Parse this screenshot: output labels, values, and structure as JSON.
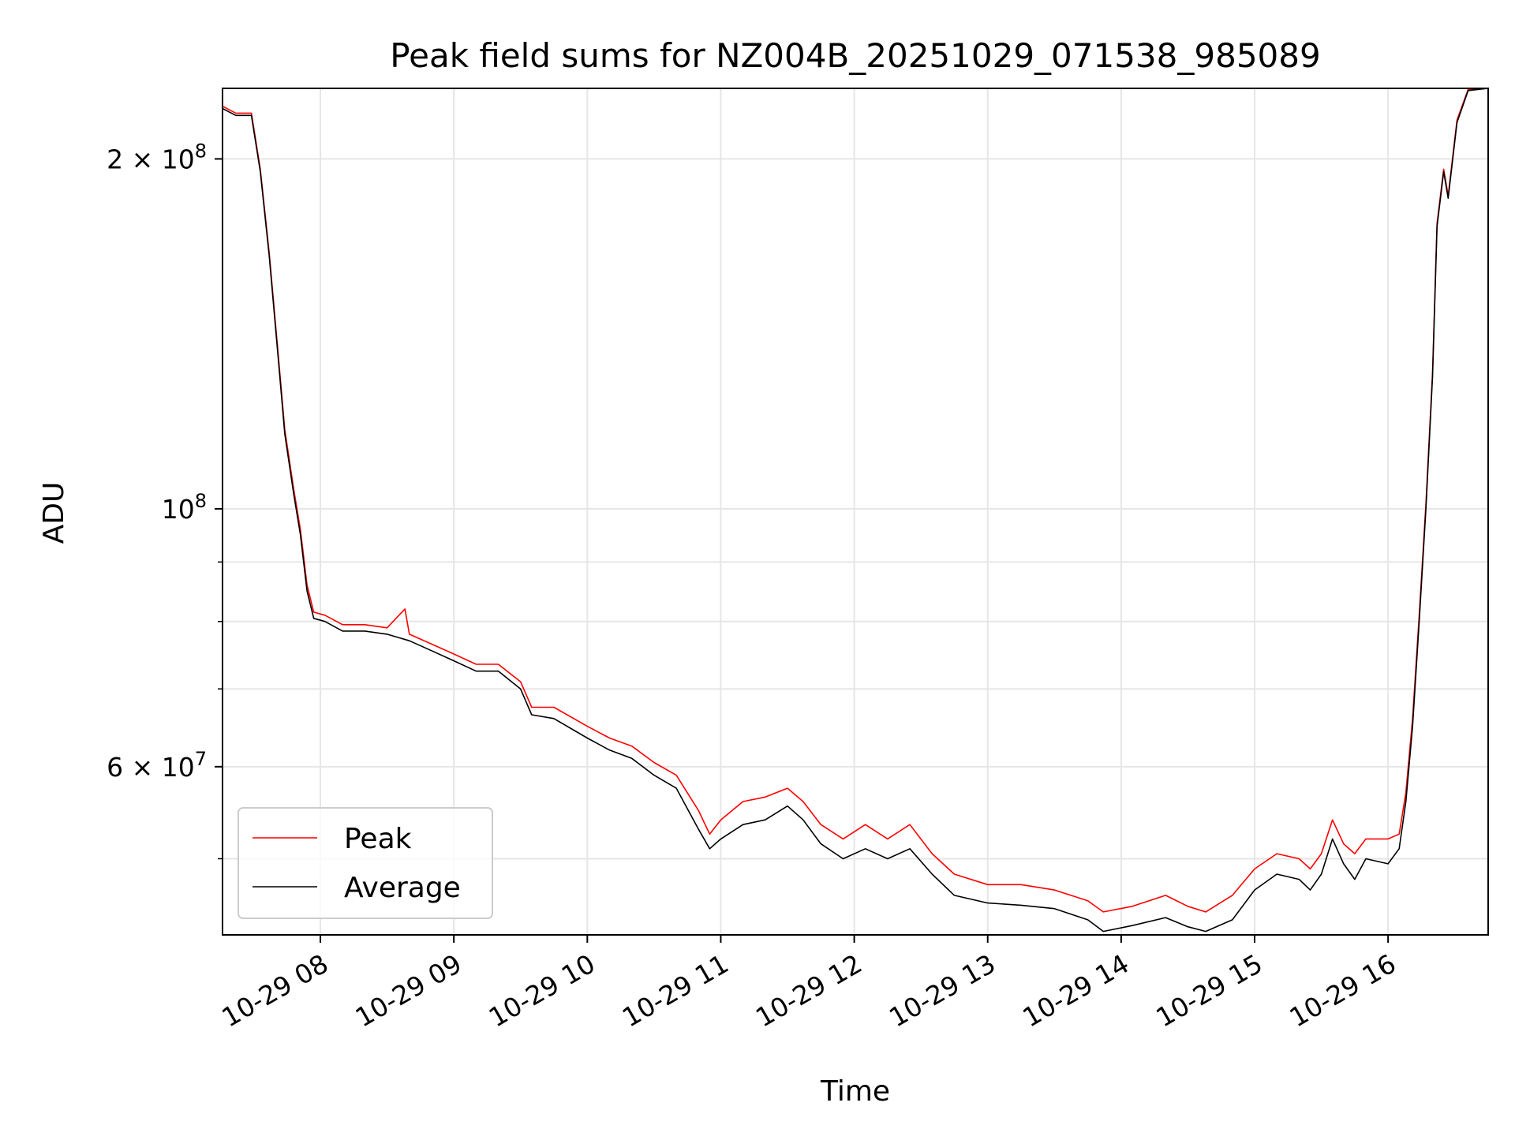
{
  "chart_data": {
    "type": "line",
    "title": "Peak field sums for NZ004B_20251029_071538_985089",
    "xlabel": "Time",
    "ylabel": "ADU",
    "y_scale": "log",
    "xlim": [
      "2025-10-29 07:16",
      "2025-10-29 16:45"
    ],
    "ylim": [
      43000000,
      230000000
    ],
    "grid": true,
    "legend_position": "lower-left",
    "x_ticks": [
      {
        "value": "2025-10-29 08:00",
        "label": "10-29 08"
      },
      {
        "value": "2025-10-29 09:00",
        "label": "10-29 09"
      },
      {
        "value": "2025-10-29 10:00",
        "label": "10-29 10"
      },
      {
        "value": "2025-10-29 11:00",
        "label": "10-29 11"
      },
      {
        "value": "2025-10-29 12:00",
        "label": "10-29 12"
      },
      {
        "value": "2025-10-29 13:00",
        "label": "10-29 13"
      },
      {
        "value": "2025-10-29 14:00",
        "label": "10-29 14"
      },
      {
        "value": "2025-10-29 15:00",
        "label": "10-29 15"
      },
      {
        "value": "2025-10-29 16:00",
        "label": "10-29 16"
      }
    ],
    "y_ticks": [
      {
        "value": 60000000,
        "mantissa": "6",
        "exponent": "7"
      },
      {
        "value": 100000000,
        "mantissa": "",
        "exponent": "8"
      },
      {
        "value": 200000000,
        "mantissa": "2",
        "exponent": "8"
      }
    ],
    "y_minor_ticks": [
      50000000,
      70000000,
      80000000,
      90000000,
      300000000
    ],
    "series": [
      {
        "name": "Average",
        "color": "#000000",
        "points": [
          [
            "2025-10-29 07:16",
            221000000
          ],
          [
            "2025-10-29 07:22",
            218000000
          ],
          [
            "2025-10-29 07:29",
            218000000
          ],
          [
            "2025-10-29 07:33",
            195000000
          ],
          [
            "2025-10-29 07:37",
            165000000
          ],
          [
            "2025-10-29 07:41",
            135000000
          ],
          [
            "2025-10-29 07:44",
            116000000
          ],
          [
            "2025-10-29 07:48",
            103000000
          ],
          [
            "2025-10-29 07:51",
            95000000
          ],
          [
            "2025-10-29 07:54",
            85000000
          ],
          [
            "2025-10-29 07:57",
            80500000
          ],
          [
            "2025-10-29 08:02",
            80000000
          ],
          [
            "2025-10-29 08:10",
            78500000
          ],
          [
            "2025-10-29 08:20",
            78500000
          ],
          [
            "2025-10-29 08:30",
            78000000
          ],
          [
            "2025-10-29 08:40",
            77000000
          ],
          [
            "2025-10-29 08:50",
            75500000
          ],
          [
            "2025-10-29 09:00",
            74000000
          ],
          [
            "2025-10-29 09:10",
            72500000
          ],
          [
            "2025-10-29 09:20",
            72500000
          ],
          [
            "2025-10-29 09:30",
            70000000
          ],
          [
            "2025-10-29 09:35",
            66500000
          ],
          [
            "2025-10-29 09:45",
            66000000
          ],
          [
            "2025-10-29 10:00",
            63500000
          ],
          [
            "2025-10-29 10:10",
            62000000
          ],
          [
            "2025-10-29 10:20",
            61000000
          ],
          [
            "2025-10-29 10:30",
            59000000
          ],
          [
            "2025-10-29 10:40",
            57500000
          ],
          [
            "2025-10-29 10:50",
            53000000
          ],
          [
            "2025-10-29 10:55",
            51000000
          ],
          [
            "2025-10-29 11:00",
            52000000
          ],
          [
            "2025-10-29 11:10",
            53500000
          ],
          [
            "2025-10-29 11:20",
            54000000
          ],
          [
            "2025-10-29 11:30",
            55500000
          ],
          [
            "2025-10-29 11:37",
            54000000
          ],
          [
            "2025-10-29 11:45",
            51500000
          ],
          [
            "2025-10-29 11:55",
            50000000
          ],
          [
            "2025-10-29 12:05",
            51000000
          ],
          [
            "2025-10-29 12:15",
            50000000
          ],
          [
            "2025-10-29 12:25",
            51000000
          ],
          [
            "2025-10-29 12:35",
            48500000
          ],
          [
            "2025-10-29 12:45",
            46500000
          ],
          [
            "2025-10-29 13:00",
            45800000
          ],
          [
            "2025-10-29 13:15",
            45600000
          ],
          [
            "2025-10-29 13:30",
            45300000
          ],
          [
            "2025-10-29 13:45",
            44300000
          ],
          [
            "2025-10-29 13:52",
            43300000
          ],
          [
            "2025-10-29 14:05",
            43800000
          ],
          [
            "2025-10-29 14:20",
            44500000
          ],
          [
            "2025-10-29 14:30",
            43700000
          ],
          [
            "2025-10-29 14:38",
            43300000
          ],
          [
            "2025-10-29 14:50",
            44300000
          ],
          [
            "2025-10-29 15:00",
            47000000
          ],
          [
            "2025-10-29 15:10",
            48500000
          ],
          [
            "2025-10-29 15:20",
            48000000
          ],
          [
            "2025-10-29 15:25",
            47000000
          ],
          [
            "2025-10-29 15:30",
            48500000
          ],
          [
            "2025-10-29 15:35",
            52000000
          ],
          [
            "2025-10-29 15:40",
            49500000
          ],
          [
            "2025-10-29 15:45",
            48000000
          ],
          [
            "2025-10-29 15:50",
            50000000
          ],
          [
            "2025-10-29 16:00",
            49500000
          ],
          [
            "2025-10-29 16:05",
            51000000
          ],
          [
            "2025-10-29 16:08",
            56000000
          ],
          [
            "2025-10-29 16:11",
            65000000
          ],
          [
            "2025-10-29 16:14",
            80000000
          ],
          [
            "2025-10-29 16:17",
            100000000
          ],
          [
            "2025-10-29 16:20",
            130000000
          ],
          [
            "2025-10-29 16:22",
            175000000
          ],
          [
            "2025-10-29 16:25",
            195000000
          ],
          [
            "2025-10-29 16:27",
            185000000
          ],
          [
            "2025-10-29 16:31",
            215000000
          ],
          [
            "2025-10-29 16:36",
            229000000
          ],
          [
            "2025-10-29 16:45",
            230000000
          ]
        ]
      },
      {
        "name": "Peak",
        "color": "#ff0000",
        "points": [
          [
            "2025-10-29 07:16",
            222000000
          ],
          [
            "2025-10-29 07:22",
            219000000
          ],
          [
            "2025-10-29 07:29",
            219000000
          ],
          [
            "2025-10-29 07:33",
            196000000
          ],
          [
            "2025-10-29 07:37",
            166000000
          ],
          [
            "2025-10-29 07:41",
            136000000
          ],
          [
            "2025-10-29 07:44",
            117000000
          ],
          [
            "2025-10-29 07:48",
            104000000
          ],
          [
            "2025-10-29 07:51",
            96000000
          ],
          [
            "2025-10-29 07:54",
            86000000
          ],
          [
            "2025-10-29 07:57",
            81500000
          ],
          [
            "2025-10-29 08:02",
            81000000
          ],
          [
            "2025-10-29 08:10",
            79500000
          ],
          [
            "2025-10-29 08:20",
            79500000
          ],
          [
            "2025-10-29 08:30",
            79000000
          ],
          [
            "2025-10-29 08:38",
            82000000
          ],
          [
            "2025-10-29 08:40",
            78000000
          ],
          [
            "2025-10-29 08:50",
            76500000
          ],
          [
            "2025-10-29 09:00",
            75000000
          ],
          [
            "2025-10-29 09:10",
            73500000
          ],
          [
            "2025-10-29 09:20",
            73500000
          ],
          [
            "2025-10-29 09:30",
            71000000
          ],
          [
            "2025-10-29 09:35",
            67500000
          ],
          [
            "2025-10-29 09:45",
            67500000
          ],
          [
            "2025-10-29 10:00",
            65000000
          ],
          [
            "2025-10-29 10:10",
            63500000
          ],
          [
            "2025-10-29 10:20",
            62500000
          ],
          [
            "2025-10-29 10:30",
            60500000
          ],
          [
            "2025-10-29 10:40",
            59000000
          ],
          [
            "2025-10-29 10:50",
            55000000
          ],
          [
            "2025-10-29 10:55",
            52500000
          ],
          [
            "2025-10-29 11:00",
            54000000
          ],
          [
            "2025-10-29 11:10",
            56000000
          ],
          [
            "2025-10-29 11:20",
            56500000
          ],
          [
            "2025-10-29 11:30",
            57500000
          ],
          [
            "2025-10-29 11:37",
            56000000
          ],
          [
            "2025-10-29 11:45",
            53500000
          ],
          [
            "2025-10-29 11:55",
            52000000
          ],
          [
            "2025-10-29 12:05",
            53500000
          ],
          [
            "2025-10-29 12:15",
            52000000
          ],
          [
            "2025-10-29 12:25",
            53500000
          ],
          [
            "2025-10-29 12:35",
            50500000
          ],
          [
            "2025-10-29 12:45",
            48500000
          ],
          [
            "2025-10-29 13:00",
            47500000
          ],
          [
            "2025-10-29 13:15",
            47500000
          ],
          [
            "2025-10-29 13:30",
            47000000
          ],
          [
            "2025-10-29 13:45",
            46000000
          ],
          [
            "2025-10-29 13:52",
            45000000
          ],
          [
            "2025-10-29 14:05",
            45500000
          ],
          [
            "2025-10-29 14:20",
            46500000
          ],
          [
            "2025-10-29 14:30",
            45500000
          ],
          [
            "2025-10-29 14:38",
            45000000
          ],
          [
            "2025-10-29 14:50",
            46500000
          ],
          [
            "2025-10-29 15:00",
            49000000
          ],
          [
            "2025-10-29 15:10",
            50500000
          ],
          [
            "2025-10-29 15:20",
            50000000
          ],
          [
            "2025-10-29 15:25",
            49000000
          ],
          [
            "2025-10-29 15:30",
            50500000
          ],
          [
            "2025-10-29 15:35",
            54000000
          ],
          [
            "2025-10-29 15:40",
            51500000
          ],
          [
            "2025-10-29 15:45",
            50500000
          ],
          [
            "2025-10-29 15:50",
            52000000
          ],
          [
            "2025-10-29 16:00",
            52000000
          ],
          [
            "2025-10-29 16:05",
            52500000
          ],
          [
            "2025-10-29 16:08",
            57000000
          ],
          [
            "2025-10-29 16:11",
            66000000
          ],
          [
            "2025-10-29 16:14",
            81000000
          ],
          [
            "2025-10-29 16:17",
            101000000
          ],
          [
            "2025-10-29 16:20",
            131000000
          ],
          [
            "2025-10-29 16:22",
            176000000
          ],
          [
            "2025-10-29 16:25",
            196000000
          ],
          [
            "2025-10-29 16:27",
            186000000
          ],
          [
            "2025-10-29 16:31",
            216000000
          ],
          [
            "2025-10-29 16:36",
            229500000
          ],
          [
            "2025-10-29 16:45",
            230000000
          ]
        ]
      }
    ]
  }
}
